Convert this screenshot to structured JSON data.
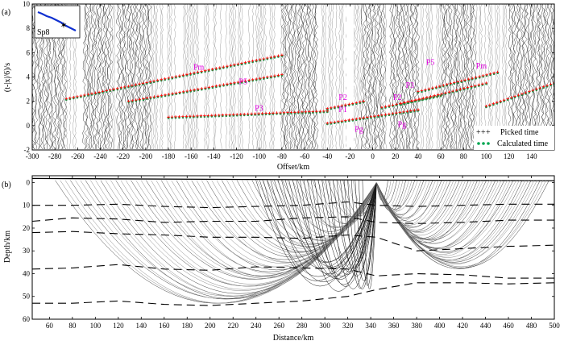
{
  "panels": [
    {
      "panel_label": "(a)",
      "inset_label": "Sp8",
      "chart_data": {
        "type": "scatter",
        "title": "",
        "xlabel": "Offset/km",
        "ylabel": "(t-|x|/6)/s",
        "xlim": [
          -300,
          160
        ],
        "ylim": [
          -2,
          10
        ],
        "xticks": [
          -300,
          -280,
          -260,
          -240,
          -220,
          -200,
          -180,
          -160,
          -140,
          -120,
          -100,
          -80,
          -60,
          -40,
          -20,
          0,
          20,
          40,
          60,
          80,
          100,
          120,
          140
        ],
        "yticks": [
          -2,
          0,
          2,
          4,
          6,
          8,
          10
        ],
        "phase_labels": [
          {
            "text": "Pm",
            "x": -158,
            "y": 4.6
          },
          {
            "text": "P5",
            "x": -118,
            "y": 3.4
          },
          {
            "text": "P3",
            "x": -104,
            "y": 1.2
          },
          {
            "text": "P2",
            "x": -30,
            "y": 2.1
          },
          {
            "text": "P1",
            "x": -30,
            "y": 1.1
          },
          {
            "text": "Pg",
            "x": -16,
            "y": -0.5
          },
          {
            "text": "P2",
            "x": 18,
            "y": 2.1
          },
          {
            "text": "Pg",
            "x": 22,
            "y": -0.1
          },
          {
            "text": "P3",
            "x": 29,
            "y": 3.1
          },
          {
            "text": "P5",
            "x": 47,
            "y": 5.0
          },
          {
            "text": "Pm",
            "x": 91,
            "y": 4.7
          }
        ],
        "legend": {
          "position": "bottom-right",
          "entries": [
            "Picked time",
            "Calculated time"
          ]
        },
        "series": [
          {
            "name": "Pm (left)",
            "x_range": [
              -270,
              -80
            ],
            "y_range": [
              2.2,
              5.8
            ]
          },
          {
            "name": "P5 (left)",
            "x_range": [
              -215,
              -80
            ],
            "y_range": [
              2.0,
              4.2
            ]
          },
          {
            "name": "P3 (left)",
            "x_range": [
              -180,
              -40
            ],
            "y_range": [
              0.7,
              1.2
            ]
          },
          {
            "name": "P2 (left)",
            "x_range": [
              -40,
              -8
            ],
            "y_range": [
              1.4,
              2.0
            ]
          },
          {
            "name": "Pg",
            "x_range": [
              -40,
              40
            ],
            "y_range": [
              0.2,
              1.3
            ]
          },
          {
            "name": "P2 (right)",
            "x_range": [
              8,
              60
            ],
            "y_range": [
              1.5,
              2.5
            ]
          },
          {
            "name": "P3 (right)",
            "x_range": [
              25,
              100
            ],
            "y_range": [
              1.8,
              3.5
            ]
          },
          {
            "name": "P5 (right)",
            "x_range": [
              40,
              110
            ],
            "y_range": [
              2.8,
              4.4
            ]
          },
          {
            "name": "Pm (right)",
            "x_range": [
              100,
              160
            ],
            "y_range": [
              1.6,
              3.5
            ]
          }
        ]
      }
    },
    {
      "panel_label": "(b)",
      "chart_data": {
        "type": "line",
        "title": "",
        "xlabel": "Distance/km",
        "ylabel": "Depth/km",
        "xlim": [
          45,
          500
        ],
        "ylim": [
          60,
          -3
        ],
        "xticks": [
          60,
          80,
          100,
          120,
          140,
          160,
          180,
          200,
          220,
          240,
          260,
          280,
          300,
          320,
          340,
          360,
          380,
          400,
          420,
          440,
          460,
          480,
          500
        ],
        "yticks": [
          0,
          10,
          20,
          30,
          40,
          50,
          60
        ],
        "shot_location_km": 345,
        "interfaces": [
          {
            "name": "interface 1",
            "x": [
              45,
              80,
              120,
              160,
              200,
              240,
              280,
              320,
              345,
              380,
              420,
              460,
              500
            ],
            "depth": [
              10,
              10,
              9.5,
              10.5,
              11,
              10.5,
              10,
              8.5,
              10,
              10.5,
              10,
              9.5,
              9.5
            ]
          },
          {
            "name": "interface 2",
            "x": [
              45,
              80,
              120,
              160,
              200,
              240,
              280,
              320,
              345,
              380,
              420,
              460,
              500
            ],
            "depth": [
              17,
              15.5,
              16,
              17.5,
              17,
              17,
              15.5,
              15,
              17.5,
              18,
              17.5,
              16.5,
              16.5
            ]
          },
          {
            "name": "interface 3",
            "x": [
              45,
              80,
              120,
              160,
              200,
              240,
              280,
              320,
              345,
              380,
              420,
              460,
              500
            ],
            "depth": [
              22,
              21.5,
              22.5,
              23,
              24,
              24,
              24.5,
              23,
              24,
              30,
              29,
              28,
              27.5
            ]
          },
          {
            "name": "interface 4",
            "x": [
              45,
              80,
              120,
              160,
              200,
              240,
              280,
              320,
              345,
              380,
              420,
              460,
              500
            ],
            "depth": [
              38,
              37.5,
              36,
              38,
              38.5,
              37,
              37.5,
              38,
              41,
              40,
              40.5,
              42,
              42
            ]
          },
          {
            "name": "interface 5",
            "x": [
              45,
              80,
              120,
              160,
              200,
              240,
              280,
              320,
              345,
              380,
              420,
              460,
              500
            ],
            "depth": [
              53,
              53,
              52,
              53.5,
              54,
              53,
              52,
              50,
              47,
              44,
              44,
              44.5,
              44
            ]
          }
        ]
      }
    }
  ],
  "colors": {
    "picked": "#ff0000",
    "calculated": "#00a650",
    "phase": "#e000e0",
    "traces": "#333333",
    "rays": "#202020",
    "inset_line": "#1030d0"
  }
}
